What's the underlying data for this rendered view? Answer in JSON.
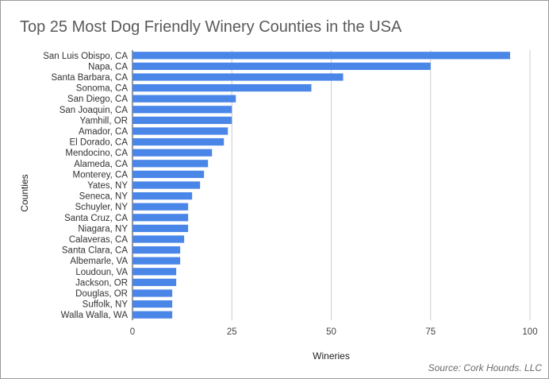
{
  "chart_data": {
    "type": "bar",
    "orientation": "horizontal",
    "title": "Top 25 Most Dog Friendly Winery Counties in the USA",
    "xlabel": "Wineries",
    "ylabel": "Counties",
    "xlim": [
      0,
      100
    ],
    "xticks": [
      "0",
      "25",
      "50",
      "75",
      "100"
    ],
    "grid": true,
    "legend": "none",
    "bar_color": "#4a86e8",
    "categories": [
      "San Luis Obispo, CA",
      "Napa, CA",
      "Santa Barbara, CA",
      "Sonoma, CA",
      "San Diego, CA",
      "San Joaquin, CA",
      "Yamhill, OR",
      "Amador, CA",
      "El Dorado, CA",
      "Mendocino, CA",
      "Alameda, CA",
      "Monterey, CA",
      "Yates, NY",
      "Seneca, NY",
      "Schuyler, NY",
      "Santa Cruz, CA",
      "Niagara, NY",
      "Calaveras, CA",
      "Santa Clara, CA",
      "Albemarle, VA",
      "Loudoun, VA",
      "Jackson, OR",
      "Douglas, OR",
      "Suffolk, NY",
      "Walla Walla, WA"
    ],
    "values": [
      95,
      75,
      53,
      45,
      26,
      25,
      25,
      24,
      23,
      20,
      19,
      18,
      17,
      15,
      14,
      14,
      14,
      13,
      12,
      12,
      11,
      11,
      10,
      10,
      10
    ],
    "source": "Source: Cork Hounds. LLC"
  }
}
